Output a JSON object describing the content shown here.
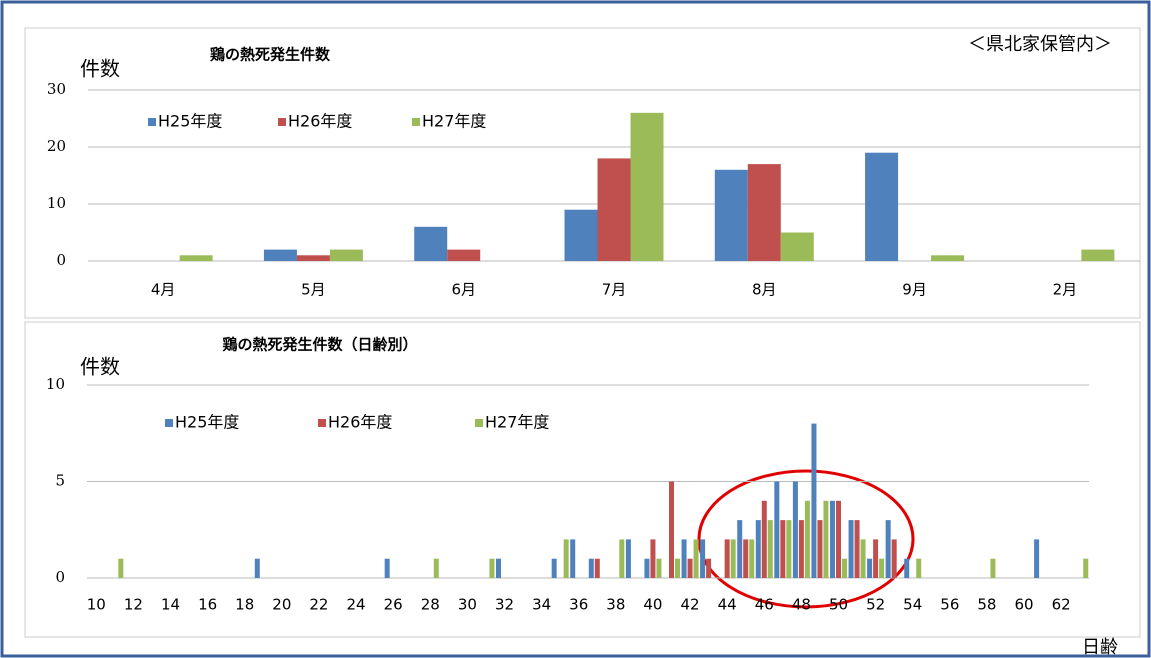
{
  "chart_data": [
    {
      "type": "bar",
      "title": "鶏の熱死発生件数",
      "y_label": "件数",
      "annotation": "＜県北家保管内＞",
      "categories": [
        "4月",
        "5月",
        "6月",
        "7月",
        "8月",
        "9月",
        "2月"
      ],
      "series": [
        {
          "name": "H25年度",
          "color": "#4f81bd",
          "values": [
            0,
            2,
            6,
            9,
            16,
            19,
            0
          ]
        },
        {
          "name": "H26年度",
          "color": "#c0504d",
          "values": [
            0,
            1,
            2,
            18,
            17,
            0,
            0
          ]
        },
        {
          "name": "H27年度",
          "color": "#9bbb59",
          "values": [
            1,
            2,
            0,
            26,
            5,
            1,
            2
          ]
        }
      ],
      "ylim": [
        0,
        30
      ],
      "yticks": [
        0,
        10,
        20,
        30
      ],
      "grid": true
    },
    {
      "type": "bar",
      "title": "鶏の熱死発生件数（日齢別）",
      "y_label": "件数",
      "x_label": "日齢",
      "x": [
        10,
        11,
        12,
        13,
        14,
        15,
        16,
        17,
        18,
        19,
        20,
        21,
        22,
        23,
        24,
        25,
        26,
        27,
        28,
        29,
        30,
        31,
        32,
        33,
        34,
        35,
        36,
        37,
        38,
        39,
        40,
        41,
        42,
        43,
        44,
        45,
        46,
        47,
        48,
        49,
        50,
        51,
        52,
        53,
        54,
        55,
        56,
        57,
        58,
        59,
        60,
        61,
        62,
        63
      ],
      "series": [
        {
          "name": "H25年度",
          "color": "#4f81bd",
          "values": [
            0,
            0,
            0,
            0,
            0,
            0,
            0,
            0,
            0,
            1,
            0,
            0,
            0,
            0,
            0,
            0,
            1,
            0,
            0,
            0,
            0,
            0,
            1,
            0,
            0,
            1,
            2,
            1,
            0,
            2,
            1,
            0,
            2,
            2,
            0,
            3,
            3,
            5,
            5,
            8,
            4,
            3,
            1,
            3,
            1,
            0,
            0,
            0,
            0,
            0,
            0,
            2,
            0,
            0
          ]
        },
        {
          "name": "H26年度",
          "color": "#c0504d",
          "values": [
            0,
            0,
            0,
            0,
            0,
            0,
            0,
            0,
            0,
            0,
            0,
            0,
            0,
            0,
            0,
            0,
            0,
            0,
            0,
            0,
            0,
            0,
            0,
            0,
            0,
            0,
            0,
            1,
            0,
            0,
            2,
            5,
            1,
            1,
            2,
            2,
            4,
            3,
            3,
            3,
            4,
            3,
            2,
            2,
            0,
            0,
            0,
            0,
            0,
            0,
            0,
            0,
            0,
            0
          ]
        },
        {
          "name": "H27年度",
          "color": "#9bbb59",
          "values": [
            0,
            1,
            0,
            0,
            0,
            0,
            0,
            0,
            0,
            0,
            0,
            0,
            0,
            0,
            0,
            0,
            0,
            0,
            1,
            0,
            0,
            1,
            0,
            0,
            0,
            2,
            0,
            0,
            2,
            0,
            1,
            1,
            2,
            0,
            2,
            2,
            3,
            3,
            4,
            4,
            1,
            2,
            1,
            0,
            1,
            0,
            0,
            0,
            1,
            0,
            0,
            0,
            0,
            1
          ]
        }
      ],
      "xlim": [
        9.5,
        63.5
      ],
      "xticks": [
        10,
        12,
        14,
        16,
        18,
        20,
        22,
        24,
        26,
        28,
        30,
        32,
        34,
        36,
        38,
        40,
        42,
        44,
        46,
        48,
        50,
        52,
        54,
        56,
        58,
        60,
        62
      ],
      "ylim": [
        0,
        10
      ],
      "yticks": [
        0,
        5,
        10
      ],
      "grid": true
    }
  ]
}
